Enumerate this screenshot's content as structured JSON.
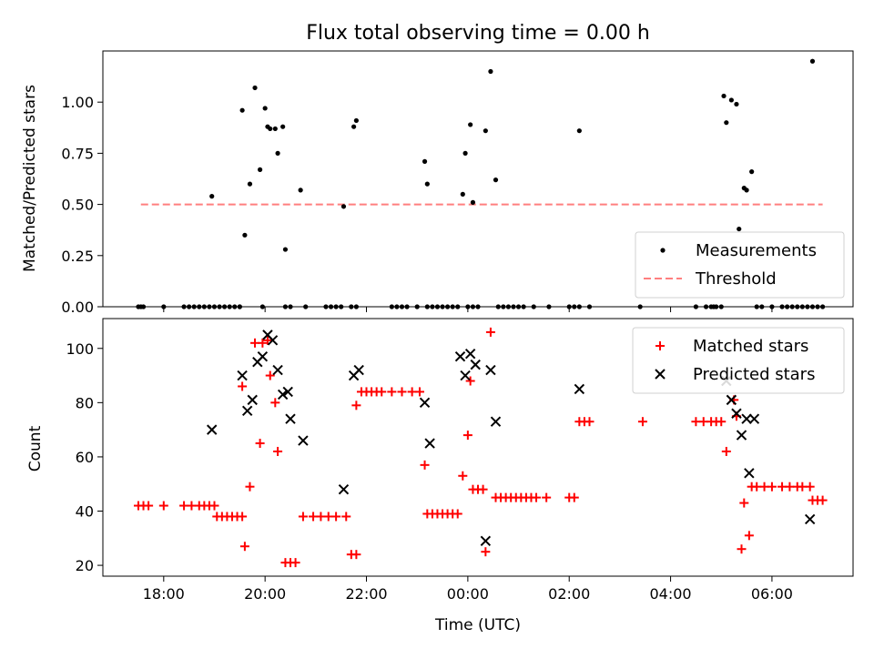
{
  "chart_data": {
    "title": "Flux total observing time = 0.00 h",
    "xlabel": "Time (UTC)",
    "x_unit": "hours relative to 00:00 UTC",
    "xlim": [
      -7.2,
      7.6
    ],
    "xticks": [
      {
        "value": -6,
        "label": "18:00"
      },
      {
        "value": -4,
        "label": "20:00"
      },
      {
        "value": -2,
        "label": "22:00"
      },
      {
        "value": 0,
        "label": "00:00"
      },
      {
        "value": 2,
        "label": "02:00"
      },
      {
        "value": 4,
        "label": "04:00"
      },
      {
        "value": 6,
        "label": "06:00"
      }
    ],
    "panels": [
      {
        "type": "scatter",
        "ylabel": "Matched/Predicted stars",
        "ylim": [
          0,
          1.25
        ],
        "yticks": [
          {
            "value": 0,
            "label": "0.00"
          },
          {
            "value": 0.25,
            "label": "0.25"
          },
          {
            "value": 0.5,
            "label": "0.50"
          },
          {
            "value": 0.75,
            "label": "0.75"
          },
          {
            "value": 1.0,
            "label": "1.00"
          }
        ],
        "legend": {
          "placement": "lower-right",
          "entries": [
            {
              "label": "Measurements",
              "marker": "dot",
              "color": "#000000"
            },
            {
              "label": "Threshold",
              "marker": "dashed-line",
              "color": "#ff7f7f"
            }
          ]
        },
        "threshold": {
          "value": 0.5,
          "x_range": [
            -6.45,
            7.0
          ],
          "color": "#ff7f7f"
        },
        "measurements": [
          [
            -6.5,
            0
          ],
          [
            -6.45,
            0
          ],
          [
            -6.4,
            0
          ],
          [
            -6.0,
            0
          ],
          [
            -5.6,
            0
          ],
          [
            -5.5,
            0
          ],
          [
            -5.4,
            0
          ],
          [
            -5.3,
            0
          ],
          [
            -5.2,
            0
          ],
          [
            -5.1,
            0
          ],
          [
            -5.0,
            0
          ],
          [
            -4.9,
            0
          ],
          [
            -4.8,
            0
          ],
          [
            -4.7,
            0
          ],
          [
            -4.6,
            0
          ],
          [
            -4.5,
            0
          ],
          [
            -4.5,
            0
          ],
          [
            -4.05,
            0
          ],
          [
            -3.6,
            0
          ],
          [
            -3.5,
            0
          ],
          [
            -3.2,
            0
          ],
          [
            -2.8,
            0
          ],
          [
            -2.7,
            0
          ],
          [
            -2.6,
            0
          ],
          [
            -2.5,
            0
          ],
          [
            -2.3,
            0
          ],
          [
            -2.2,
            0
          ],
          [
            -1.5,
            0
          ],
          [
            -1.4,
            0
          ],
          [
            -1.3,
            0
          ],
          [
            -1.2,
            0
          ],
          [
            -1.0,
            0
          ],
          [
            -0.8,
            0
          ],
          [
            -0.7,
            0
          ],
          [
            -0.6,
            0
          ],
          [
            -0.5,
            0
          ],
          [
            -0.4,
            0
          ],
          [
            -0.3,
            0
          ],
          [
            -0.2,
            0
          ],
          [
            0.0,
            0
          ],
          [
            0.1,
            0
          ],
          [
            0.2,
            0
          ],
          [
            0.6,
            0
          ],
          [
            0.7,
            0
          ],
          [
            0.8,
            0
          ],
          [
            0.9,
            0
          ],
          [
            1.0,
            0
          ],
          [
            1.1,
            0
          ],
          [
            1.3,
            0
          ],
          [
            1.6,
            0
          ],
          [
            2.0,
            0
          ],
          [
            2.1,
            0
          ],
          [
            2.2,
            0
          ],
          [
            2.4,
            0
          ],
          [
            3.4,
            0
          ],
          [
            4.5,
            0
          ],
          [
            4.7,
            0
          ],
          [
            4.8,
            0
          ],
          [
            4.85,
            0
          ],
          [
            4.9,
            0
          ],
          [
            5.0,
            0
          ],
          [
            5.7,
            0
          ],
          [
            5.8,
            0
          ],
          [
            6.0,
            0
          ],
          [
            6.2,
            0
          ],
          [
            6.3,
            0
          ],
          [
            6.4,
            0
          ],
          [
            6.5,
            0
          ],
          [
            6.6,
            0
          ],
          [
            6.7,
            0
          ],
          [
            6.8,
            0
          ],
          [
            6.9,
            0
          ],
          [
            7.0,
            0
          ],
          [
            -5.05,
            0.54
          ],
          [
            -4.45,
            0.96
          ],
          [
            -4.4,
            0.35
          ],
          [
            -4.3,
            0.6
          ],
          [
            -4.2,
            1.07
          ],
          [
            -4.1,
            0.67
          ],
          [
            -4.0,
            0.97
          ],
          [
            -3.95,
            0.88
          ],
          [
            -3.9,
            0.87
          ],
          [
            -3.8,
            0.87
          ],
          [
            -3.75,
            0.75
          ],
          [
            -3.65,
            0.88
          ],
          [
            -3.6,
            0.28
          ],
          [
            -3.3,
            0.57
          ],
          [
            -2.45,
            0.49
          ],
          [
            -2.25,
            0.88
          ],
          [
            -2.2,
            0.91
          ],
          [
            -0.85,
            0.71
          ],
          [
            -0.8,
            0.6
          ],
          [
            -0.1,
            0.55
          ],
          [
            -0.05,
            0.75
          ],
          [
            0.05,
            0.89
          ],
          [
            0.1,
            0.51
          ],
          [
            0.35,
            0.86
          ],
          [
            0.45,
            1.15
          ],
          [
            0.55,
            0.62
          ],
          [
            2.2,
            0.86
          ],
          [
            5.05,
            1.03
          ],
          [
            5.1,
            0.9
          ],
          [
            5.2,
            1.01
          ],
          [
            5.3,
            0.99
          ],
          [
            5.35,
            0.38
          ],
          [
            5.45,
            0.58
          ],
          [
            5.5,
            0.57
          ],
          [
            5.6,
            0.66
          ],
          [
            6.8,
            1.2
          ]
        ]
      },
      {
        "type": "scatter",
        "ylabel": "Count",
        "ylim": [
          16,
          111
        ],
        "yticks": [
          {
            "value": 20,
            "label": "20"
          },
          {
            "value": 40,
            "label": "40"
          },
          {
            "value": 60,
            "label": "60"
          },
          {
            "value": 80,
            "label": "80"
          },
          {
            "value": 100,
            "label": "100"
          }
        ],
        "legend": {
          "placement": "top-right",
          "entries": [
            {
              "label": "Matched stars",
              "marker": "plus",
              "color": "#ff0000"
            },
            {
              "label": "Predicted stars",
              "marker": "x",
              "color": "#000000"
            }
          ]
        },
        "series": [
          {
            "name": "Matched stars",
            "color": "#ff0000",
            "marker": "plus",
            "points": [
              [
                -6.5,
                42
              ],
              [
                -6.4,
                42
              ],
              [
                -6.3,
                42
              ],
              [
                -6.0,
                42
              ],
              [
                -5.6,
                42
              ],
              [
                -5.45,
                42
              ],
              [
                -5.3,
                42
              ],
              [
                -5.2,
                42
              ],
              [
                -5.1,
                42
              ],
              [
                -5.0,
                42
              ],
              [
                -4.95,
                38
              ],
              [
                -4.85,
                38
              ],
              [
                -4.75,
                38
              ],
              [
                -4.65,
                38
              ],
              [
                -4.55,
                38
              ],
              [
                -4.45,
                38
              ],
              [
                -4.45,
                86
              ],
              [
                -4.4,
                27
              ],
              [
                -4.3,
                49
              ],
              [
                -4.2,
                102
              ],
              [
                -4.1,
                65
              ],
              [
                -4.05,
                102
              ],
              [
                -3.95,
                103
              ],
              [
                -3.9,
                90
              ],
              [
                -3.8,
                80
              ],
              [
                -3.75,
                62
              ],
              [
                -3.6,
                21
              ],
              [
                -3.5,
                21
              ],
              [
                -3.4,
                21
              ],
              [
                -3.25,
                38
              ],
              [
                -3.05,
                38
              ],
              [
                -2.9,
                38
              ],
              [
                -2.75,
                38
              ],
              [
                -2.6,
                38
              ],
              [
                -2.4,
                38
              ],
              [
                -2.3,
                24
              ],
              [
                -2.2,
                24
              ],
              [
                -2.2,
                79
              ],
              [
                -2.1,
                84
              ],
              [
                -2.0,
                84
              ],
              [
                -1.9,
                84
              ],
              [
                -1.8,
                84
              ],
              [
                -1.7,
                84
              ],
              [
                -1.5,
                84
              ],
              [
                -1.3,
                84
              ],
              [
                -1.1,
                84
              ],
              [
                -0.95,
                84
              ],
              [
                -0.85,
                57
              ],
              [
                -0.8,
                39
              ],
              [
                -0.7,
                39
              ],
              [
                -0.6,
                39
              ],
              [
                -0.5,
                39
              ],
              [
                -0.4,
                39
              ],
              [
                -0.3,
                39
              ],
              [
                -0.2,
                39
              ],
              [
                -0.1,
                53
              ],
              [
                0.0,
                68
              ],
              [
                0.05,
                88
              ],
              [
                0.1,
                48
              ],
              [
                0.2,
                48
              ],
              [
                0.3,
                48
              ],
              [
                0.35,
                25
              ],
              [
                0.45,
                106
              ],
              [
                0.55,
                45
              ],
              [
                0.65,
                45
              ],
              [
                0.75,
                45
              ],
              [
                0.85,
                45
              ],
              [
                0.95,
                45
              ],
              [
                1.05,
                45
              ],
              [
                1.15,
                45
              ],
              [
                1.25,
                45
              ],
              [
                1.35,
                45
              ],
              [
                1.55,
                45
              ],
              [
                2.0,
                45
              ],
              [
                2.1,
                45
              ],
              [
                2.2,
                73
              ],
              [
                2.3,
                73
              ],
              [
                2.4,
                73
              ],
              [
                3.45,
                73
              ],
              [
                4.5,
                73
              ],
              [
                4.65,
                73
              ],
              [
                4.8,
                73
              ],
              [
                4.9,
                73
              ],
              [
                5.0,
                73
              ],
              [
                5.1,
                62
              ],
              [
                5.25,
                81
              ],
              [
                5.3,
                75
              ],
              [
                5.4,
                26
              ],
              [
                5.45,
                43
              ],
              [
                5.55,
                31
              ],
              [
                5.6,
                49
              ],
              [
                5.7,
                49
              ],
              [
                5.85,
                49
              ],
              [
                6.0,
                49
              ],
              [
                6.2,
                49
              ],
              [
                6.35,
                49
              ],
              [
                6.5,
                49
              ],
              [
                6.6,
                49
              ],
              [
                6.75,
                49
              ],
              [
                6.8,
                44
              ],
              [
                6.9,
                44
              ],
              [
                7.0,
                44
              ]
            ]
          },
          {
            "name": "Predicted stars",
            "color": "#000000",
            "marker": "x",
            "points": [
              [
                -5.05,
                70
              ],
              [
                -4.45,
                90
              ],
              [
                -4.35,
                77
              ],
              [
                -4.25,
                81
              ],
              [
                -4.15,
                95
              ],
              [
                -4.05,
                97
              ],
              [
                -3.95,
                105
              ],
              [
                -3.85,
                103
              ],
              [
                -3.75,
                92
              ],
              [
                -3.65,
                83
              ],
              [
                -3.55,
                84
              ],
              [
                -3.5,
                74
              ],
              [
                -3.25,
                66
              ],
              [
                -2.45,
                48
              ],
              [
                -2.25,
                90
              ],
              [
                -2.15,
                92
              ],
              [
                -0.85,
                80
              ],
              [
                -0.75,
                65
              ],
              [
                -0.15,
                97
              ],
              [
                -0.05,
                90
              ],
              [
                0.05,
                98
              ],
              [
                0.15,
                94
              ],
              [
                0.35,
                29
              ],
              [
                0.45,
                92
              ],
              [
                0.55,
                73
              ],
              [
                2.2,
                85
              ],
              [
                5.1,
                88
              ],
              [
                5.2,
                81
              ],
              [
                5.3,
                76
              ],
              [
                5.4,
                68
              ],
              [
                5.5,
                74
              ],
              [
                5.55,
                54
              ],
              [
                5.65,
                74
              ],
              [
                6.75,
                37
              ]
            ]
          }
        ]
      }
    ]
  }
}
